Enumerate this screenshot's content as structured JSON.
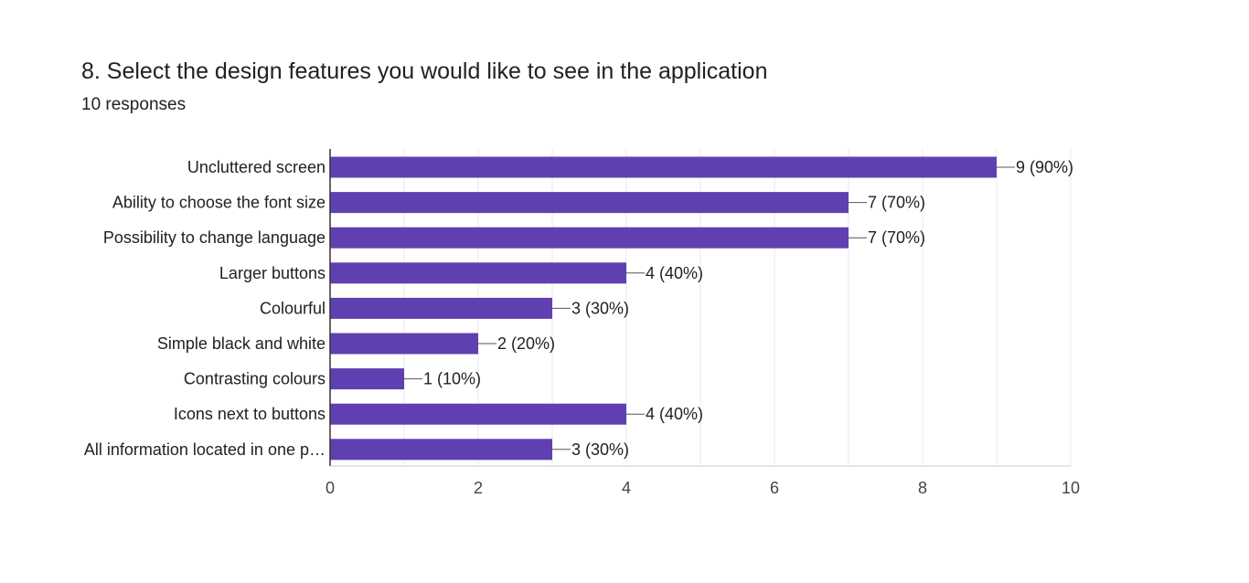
{
  "question": {
    "title": "8. Select the design features you would like to see in the application",
    "responses": "10 responses"
  },
  "colors": {
    "bar": "#6040b0",
    "grid": "#e8e8e8",
    "axis": "#333333"
  },
  "chart_data": {
    "type": "bar",
    "orientation": "horizontal",
    "categories": [
      "Uncluttered screen",
      "Ability to choose the font size",
      "Possibility to change language",
      "Larger buttons",
      "Colourful",
      "Simple black and white",
      "Contrasting colours",
      "Icons next to buttons",
      "All information located in one p…"
    ],
    "values": [
      9,
      7,
      7,
      4,
      3,
      2,
      1,
      4,
      3
    ],
    "value_labels": [
      "9 (90%)",
      "7 (70%)",
      "7 (70%)",
      "4 (40%)",
      "3 (30%)",
      "2 (20%)",
      "1 (10%)",
      "4 (40%)",
      "3 (30%)"
    ],
    "xlim": [
      0,
      10
    ],
    "xticks": [
      0,
      2,
      4,
      6,
      8,
      10
    ],
    "grid": true,
    "title": "",
    "xlabel": "",
    "ylabel": ""
  }
}
